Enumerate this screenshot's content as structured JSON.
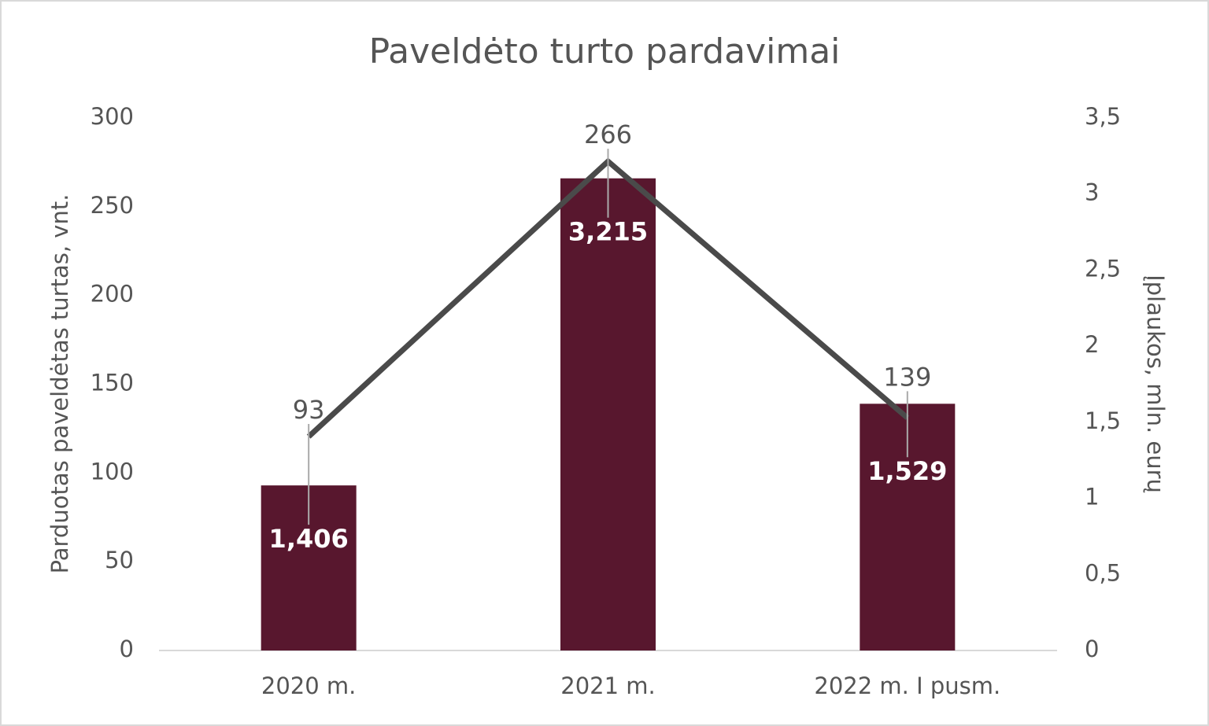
{
  "chart_data": {
    "type": "combo",
    "title": "Paveldėto turto pardavimai",
    "categories": [
      "2020 m.",
      "2021 m.",
      "2022 m. I pusm."
    ],
    "ylabel": "Parduotas paveldėtas turtas, vnt.",
    "y2label": "Įplaukos, mln. eurų",
    "series": [
      {
        "type": "bar",
        "color": "#58172e",
        "values": [
          93,
          266,
          139
        ]
      },
      {
        "type": "line",
        "axis": "y2",
        "color": "#4a4a4a",
        "values": [
          1.406,
          3.215,
          1.529
        ],
        "value_labels": [
          "1,406",
          "3,215",
          "1,529"
        ]
      }
    ],
    "ylim": [
      0,
      300
    ],
    "yticks": [
      0,
      50,
      100,
      150,
      200,
      250,
      300
    ],
    "y2lim": [
      0,
      3.5
    ],
    "y2ticks": [
      0,
      {
        "value": 0.5,
        "label": "0,5"
      },
      1,
      {
        "value": 1.5,
        "label": "1,5"
      },
      2,
      {
        "value": 2.5,
        "label": "2,5"
      },
      3,
      {
        "value": 3.5,
        "label": "3,5"
      }
    ]
  }
}
